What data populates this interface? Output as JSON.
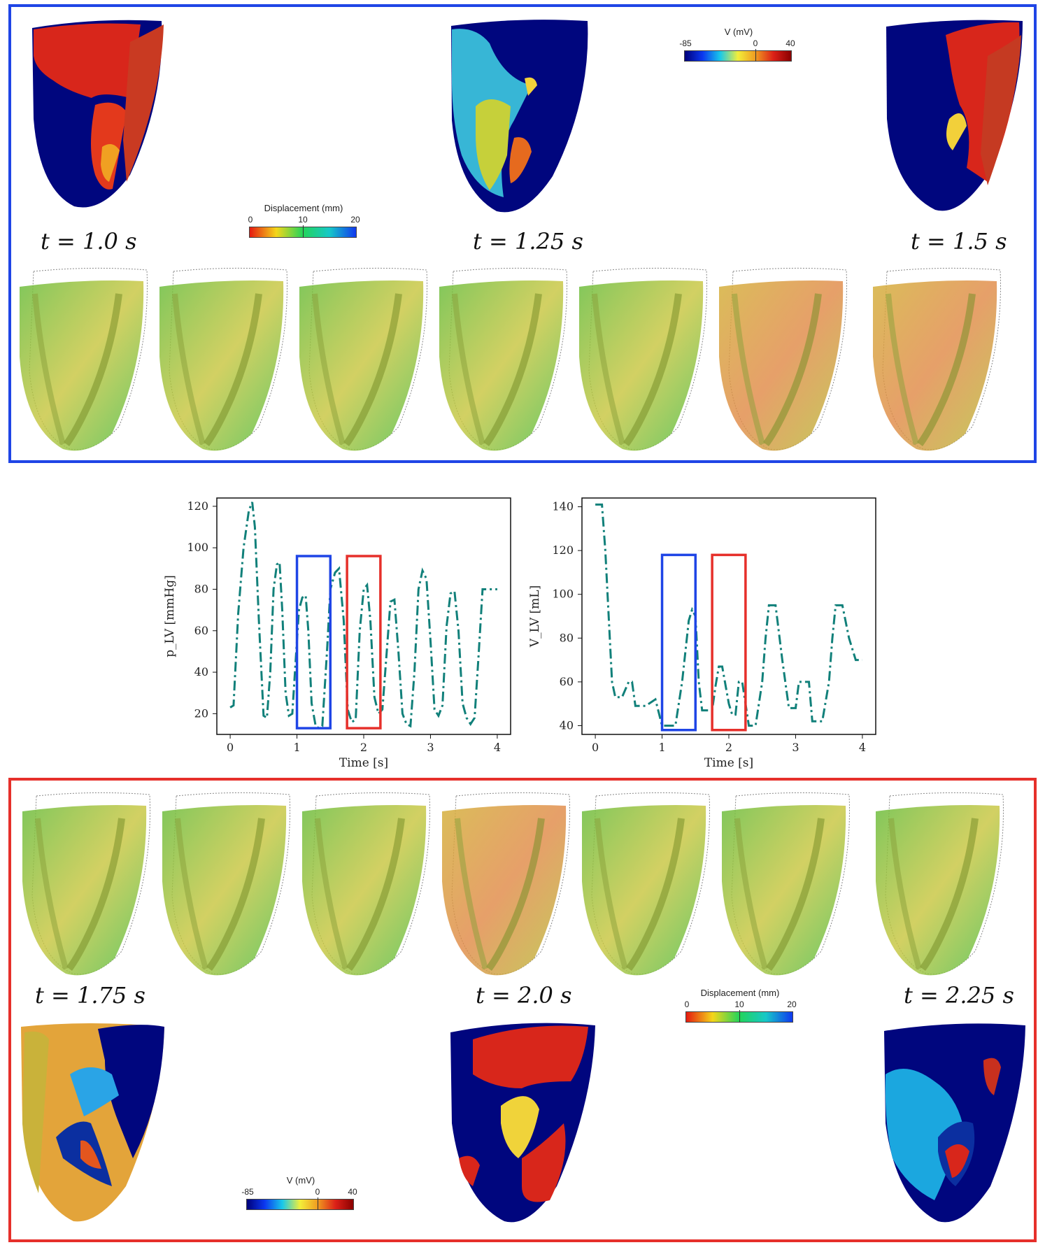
{
  "colors": {
    "top_frame": "#1f45e6",
    "bottom_frame": "#e6302b",
    "curve": "#11807a",
    "voltage_scale": [
      "#00007a",
      "#0b37f0",
      "#19c8ea",
      "#f2ee3a",
      "#f09a20",
      "#dc2018",
      "#8a0000"
    ],
    "displacement_scale": [
      "#e51a10",
      "#f4d61a",
      "#23d45a",
      "#16c8c8",
      "#1038ef"
    ]
  },
  "top_panel": {
    "time_labels": [
      "t = 1.0 s",
      "t = 1.25 s",
      "t = 1.5 s"
    ],
    "voltage_colorbar": {
      "title": "V (mV)",
      "ticks": [
        "-85",
        "0",
        "40"
      ]
    },
    "displacement_colorbar": {
      "title": "Displacement (mm)",
      "ticks": [
        "0",
        "10",
        "20"
      ]
    },
    "voltage_hearts": [
      "heart-voltage",
      "heart-voltage",
      "heart-voltage"
    ],
    "displacement_hearts": [
      "heart-mesh",
      "heart-mesh",
      "heart-mesh",
      "heart-mesh",
      "heart-mesh",
      "heart-mesh",
      "heart-mesh"
    ]
  },
  "bottom_panel": {
    "time_labels": [
      "t = 1.75 s",
      "t = 2.0 s",
      "t = 2.25 s"
    ],
    "voltage_colorbar": {
      "title": "V (mV)",
      "ticks": [
        "-85",
        "0",
        "40"
      ]
    },
    "displacement_colorbar": {
      "title": "Displacement (mm)",
      "ticks": [
        "0",
        "10",
        "20"
      ]
    }
  },
  "chart_data": [
    {
      "type": "line",
      "xlabel": "Time [s]",
      "ylabel": "p_LV [mmHg]",
      "xlim": [
        -0.2,
        4.2
      ],
      "ylim": [
        10,
        124
      ],
      "xticks": [
        0,
        1,
        2,
        3,
        4
      ],
      "yticks": [
        20,
        40,
        60,
        80,
        100,
        120
      ],
      "series": [
        {
          "x": [
            0,
            0.05,
            0.12,
            0.2,
            0.28,
            0.33,
            0.37,
            0.43,
            0.5,
            0.55,
            0.6,
            0.65,
            0.7,
            0.74,
            0.78,
            0.83,
            0.88,
            0.93,
            0.98,
            1.03,
            1.08,
            1.13,
            1.17,
            1.22,
            1.28,
            1.33,
            1.38,
            1.45,
            1.5,
            1.57,
            1.63,
            1.7,
            1.76,
            1.82,
            1.88,
            1.94,
            2.0,
            2.05,
            2.1,
            2.16,
            2.22,
            2.28,
            2.34,
            2.4,
            2.46,
            2.52,
            2.58,
            2.64,
            2.7,
            2.76,
            2.82,
            2.88,
            2.94,
            3.0,
            3.06,
            3.12,
            3.18,
            3.24,
            3.3,
            3.36,
            3.42,
            3.48,
            3.54,
            3.6,
            3.66,
            3.72,
            3.78,
            3.84,
            3.9,
            3.96,
            4.0
          ],
          "y": [
            23,
            24,
            68,
            100,
            118,
            122,
            110,
            65,
            19,
            18,
            40,
            80,
            92,
            93,
            70,
            30,
            19,
            20,
            45,
            70,
            76,
            77,
            60,
            25,
            14,
            13,
            14,
            50,
            80,
            88,
            90,
            65,
            22,
            16,
            17,
            60,
            80,
            82,
            65,
            28,
            20,
            22,
            48,
            74,
            75,
            50,
            20,
            15,
            14,
            40,
            80,
            89,
            85,
            55,
            22,
            19,
            24,
            62,
            78,
            79,
            60,
            25,
            18,
            15,
            18,
            48,
            80,
            80,
            80,
            80,
            80
          ]
        }
      ],
      "highlight_boxes": [
        {
          "color": "blue",
          "x": [
            1.0,
            1.5
          ],
          "y": [
            13,
            96
          ]
        },
        {
          "color": "red",
          "x": [
            1.75,
            2.25
          ],
          "y": [
            13,
            96
          ]
        }
      ]
    },
    {
      "type": "line",
      "xlabel": "Time [s]",
      "ylabel": "V_LV [mL]",
      "xlim": [
        -0.2,
        4.2
      ],
      "ylim": [
        36,
        144
      ],
      "xticks": [
        0,
        1,
        2,
        3,
        4
      ],
      "yticks": [
        40,
        60,
        80,
        100,
        120,
        140
      ],
      "series": [
        {
          "x": [
            0,
            0.1,
            0.15,
            0.2,
            0.25,
            0.3,
            0.35,
            0.4,
            0.5,
            0.55,
            0.6,
            0.65,
            0.7,
            0.75,
            0.8,
            0.9,
            0.95,
            1.0,
            1.05,
            1.1,
            1.2,
            1.3,
            1.4,
            1.45,
            1.5,
            1.55,
            1.6,
            1.7,
            1.75,
            1.8,
            1.85,
            1.9,
            2.0,
            2.05,
            2.1,
            2.15,
            2.2,
            2.3,
            2.35,
            2.4,
            2.5,
            2.55,
            2.6,
            2.7,
            2.8,
            2.9,
            3.0,
            3.05,
            3.1,
            3.2,
            3.25,
            3.3,
            3.35,
            3.4,
            3.5,
            3.55,
            3.6,
            3.7,
            3.8,
            3.9,
            3.95,
            4.0
          ],
          "y": [
            141,
            141,
            120,
            90,
            60,
            53,
            53,
            53,
            60,
            60,
            49,
            49,
            49,
            49,
            50,
            52,
            46,
            40,
            40,
            40,
            40,
            60,
            88,
            93,
            90,
            60,
            47,
            47,
            47,
            58,
            67,
            67,
            50,
            45,
            45,
            60,
            60,
            40,
            40,
            40,
            60,
            80,
            95,
            95,
            70,
            48,
            48,
            60,
            60,
            60,
            42,
            42,
            42,
            42,
            60,
            80,
            95,
            95,
            80,
            70,
            70,
            70
          ]
        }
      ],
      "highlight_boxes": [
        {
          "color": "blue",
          "x": [
            1.0,
            1.5
          ],
          "y": [
            38,
            118
          ]
        },
        {
          "color": "red",
          "x": [
            1.75,
            2.25
          ],
          "y": [
            38,
            118
          ]
        }
      ]
    }
  ]
}
